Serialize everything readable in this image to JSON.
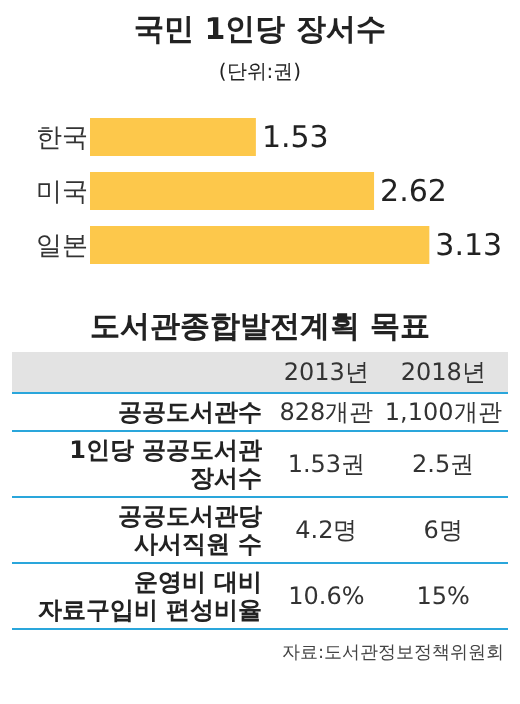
{
  "chart_data": [
    {
      "type": "bar",
      "title": "국민 1인당 장서수",
      "subtitle": "(단위:권)",
      "orientation": "horizontal",
      "categories": [
        "한국",
        "미국",
        "일본"
      ],
      "values": [
        1.53,
        2.62,
        3.13
      ],
      "color": "#fdc84b",
      "data_labels": true
    },
    {
      "type": "other",
      "title": "도서관종합발전계획 목표",
      "categories": [
        "2013년",
        "2018년"
      ],
      "y_categories": [
        "공공도서관수",
        "1인당 공공도서관\n장서수",
        "공공도서관당\n사서직원 수",
        "운영비 대비\n자료구입비 편성비율"
      ],
      "cell_labels": [
        [
          "828개관",
          "1,100개관"
        ],
        [
          "1.53권",
          "2.5권"
        ],
        [
          "4.2명",
          "6명"
        ],
        [
          "10.6%",
          "15%"
        ]
      ],
      "annotations": [
        "자료:도서관정보정책위원회"
      ]
    }
  ]
}
